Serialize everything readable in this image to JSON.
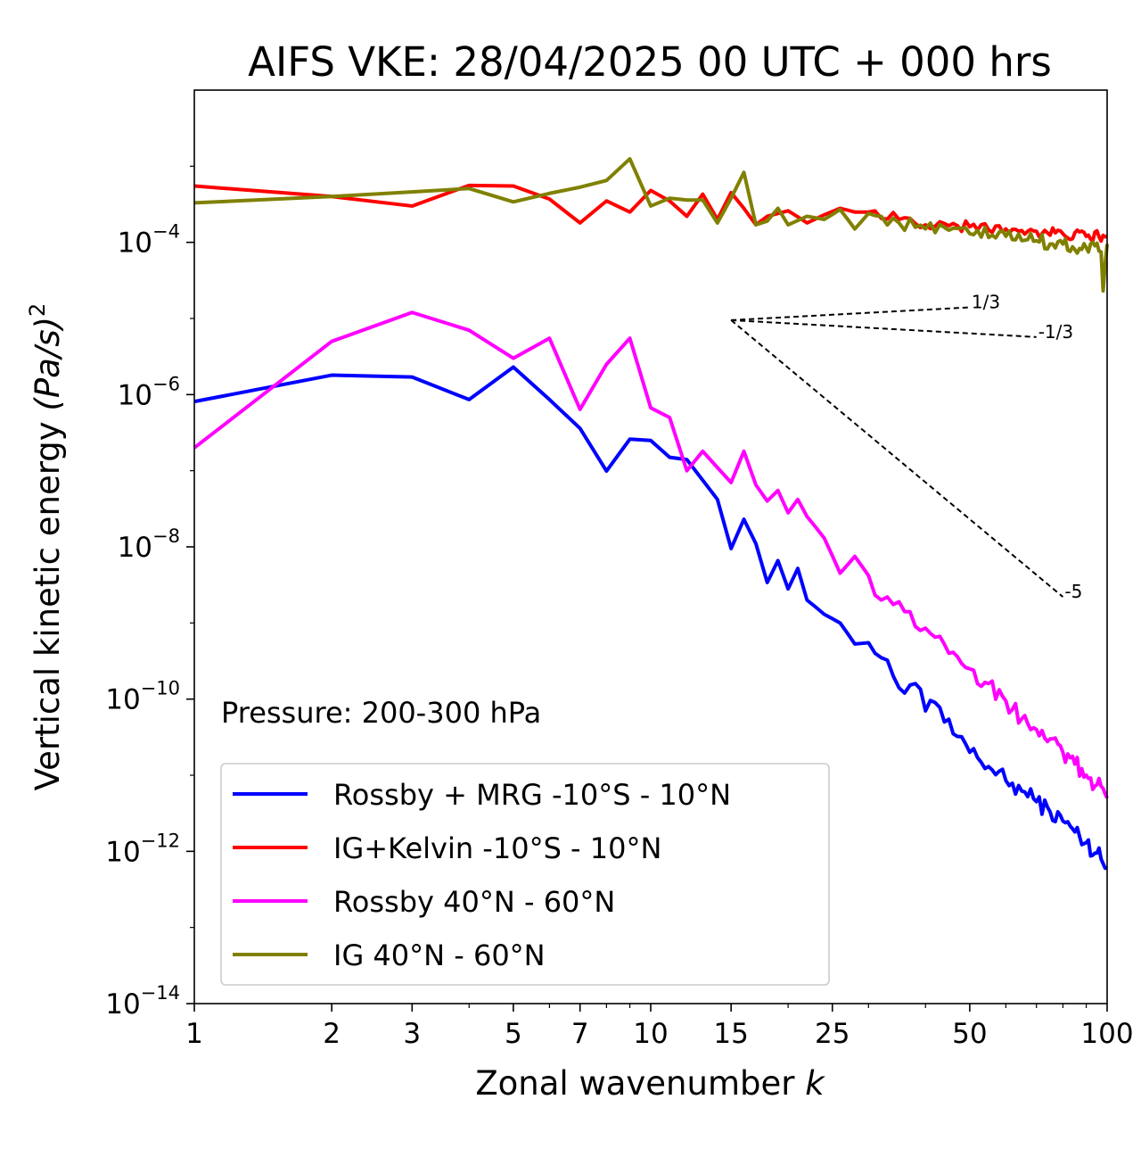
{
  "chart_data": {
    "type": "line",
    "title": "AIFS VKE: 28/04/2025 00 UTC + 000 hrs",
    "xlabel": "Zonal wavenumber",
    "xlabel_var": "k",
    "ylabel": "Vertical kinetic energy",
    "ylabel_var": "(Pa/s)",
    "ylabel_exp": "2",
    "xscale": "log",
    "yscale": "log",
    "xlim": [
      1,
      100
    ],
    "ylim": [
      1e-14,
      0.01
    ],
    "xticks": [
      {
        "value": 1,
        "label": "1"
      },
      {
        "value": 2,
        "label": "2"
      },
      {
        "value": 3,
        "label": "3"
      },
      {
        "value": 5,
        "label": "5"
      },
      {
        "value": 7,
        "label": "7"
      },
      {
        "value": 10,
        "label": "10"
      },
      {
        "value": 15,
        "label": "15"
      },
      {
        "value": 25,
        "label": "25"
      },
      {
        "value": 50,
        "label": "50"
      },
      {
        "value": 100,
        "label": "100"
      }
    ],
    "yticks": [
      {
        "value": 0.0001,
        "base": "10",
        "exp": "−4"
      },
      {
        "value": 1e-06,
        "base": "10",
        "exp": "−6"
      },
      {
        "value": 1e-08,
        "base": "10",
        "exp": "−8"
      },
      {
        "value": 1e-10,
        "base": "10",
        "exp": "−10"
      },
      {
        "value": 1e-12,
        "base": "10",
        "exp": "−12"
      },
      {
        "value": 1e-14,
        "base": "10",
        "exp": "−14"
      }
    ],
    "annotation": "Pressure: 200-300 hPa",
    "legend_position": "lower-left",
    "series": [
      {
        "name": "Rossby + MRG -10°S - 10°N",
        "color": "#0000ff",
        "anchors": [
          [
            1,
            8.1e-07
          ],
          [
            2,
            1.8e-06
          ],
          [
            3,
            1.7e-06
          ],
          [
            4,
            8.6e-07
          ],
          [
            5,
            2.3e-06
          ],
          [
            6,
            8.6e-07
          ],
          [
            7,
            3.6e-07
          ],
          [
            8,
            9.9e-08
          ],
          [
            9,
            2.6e-07
          ],
          [
            10,
            2.5e-07
          ],
          [
            11,
            1.5e-07
          ],
          [
            12,
            1.4e-07
          ],
          [
            13,
            7.5e-08
          ],
          [
            14,
            4.2e-08
          ],
          [
            15,
            9.5e-09
          ],
          [
            16,
            2.3e-08
          ],
          [
            17,
            1.1e-08
          ],
          [
            18,
            3.4e-09
          ],
          [
            19,
            6.6e-09
          ],
          [
            20,
            2.8e-09
          ],
          [
            21,
            5.2e-09
          ],
          [
            22,
            2e-09
          ],
          [
            24,
            1.3e-09
          ],
          [
            26,
            1e-09
          ],
          [
            28,
            5.3e-10
          ],
          [
            30,
            5.5e-10
          ],
          [
            32,
            3.5e-10
          ],
          [
            34,
            2e-10
          ],
          [
            36,
            1.2e-10
          ],
          [
            38,
            1.6e-10
          ],
          [
            40,
            7e-11
          ],
          [
            42,
            9e-11
          ],
          [
            44,
            5e-11
          ],
          [
            46,
            3.5e-11
          ],
          [
            48,
            3.2e-11
          ],
          [
            50,
            2e-11
          ],
          [
            55,
            1.3e-11
          ],
          [
            60,
            8.5e-12
          ],
          [
            65,
            6.2e-12
          ],
          [
            70,
            4.5e-12
          ],
          [
            75,
            3.3e-12
          ],
          [
            80,
            2.5e-12
          ],
          [
            85,
            1.8e-12
          ],
          [
            90,
            1.3e-12
          ],
          [
            95,
            9.5e-13
          ],
          [
            100,
            6e-13
          ]
        ],
        "noise": 0.12
      },
      {
        "name": "IG+Kelvin -10°S - 10°N",
        "color": "#ff0000",
        "anchors": [
          [
            1,
            0.00055
          ],
          [
            2,
            0.0004
          ],
          [
            3,
            0.0003
          ],
          [
            4,
            0.00056
          ],
          [
            5,
            0.00055
          ],
          [
            6,
            0.00037
          ],
          [
            7,
            0.00018
          ],
          [
            8,
            0.00035
          ],
          [
            9,
            0.00025
          ],
          [
            10,
            0.00048
          ],
          [
            11,
            0.00035
          ],
          [
            12,
            0.00022
          ],
          [
            13,
            0.00043
          ],
          [
            14,
            0.0002
          ],
          [
            15,
            0.00045
          ],
          [
            16,
            0.00028
          ],
          [
            17,
            0.00017
          ],
          [
            18,
            0.00022
          ],
          [
            20,
            0.00026
          ],
          [
            22,
            0.00018
          ],
          [
            24,
            0.00023
          ],
          [
            26,
            0.00028
          ],
          [
            28,
            0.00025
          ],
          [
            30,
            0.00025
          ],
          [
            35,
            0.0002
          ],
          [
            40,
            0.00017
          ],
          [
            50,
            0.00016
          ],
          [
            60,
            0.00015
          ],
          [
            70,
            0.00014
          ],
          [
            80,
            0.00013
          ],
          [
            90,
            0.00012
          ],
          [
            100,
            0.00012
          ]
        ],
        "noise": 0.08
      },
      {
        "name": "Rossby 40°N - 60°N",
        "color": "#ff00ff",
        "anchors": [
          [
            1,
            2e-07
          ],
          [
            2,
            5e-06
          ],
          [
            3,
            1.2e-05
          ],
          [
            4,
            7e-06
          ],
          [
            5,
            3e-06
          ],
          [
            6,
            5.5e-06
          ],
          [
            7,
            6.4e-07
          ],
          [
            8,
            2.5e-06
          ],
          [
            9,
            5.5e-06
          ],
          [
            10,
            6.7e-07
          ],
          [
            11,
            5e-07
          ],
          [
            12,
            1e-07
          ],
          [
            13,
            1.8e-07
          ],
          [
            14,
            1.1e-07
          ],
          [
            15,
            7e-08
          ],
          [
            16,
            1.8e-07
          ],
          [
            17,
            6.5e-08
          ],
          [
            18,
            4e-08
          ],
          [
            19,
            5.5e-08
          ],
          [
            20,
            2.8e-08
          ],
          [
            21,
            4.2e-08
          ],
          [
            22,
            2.5e-08
          ],
          [
            24,
            1.3e-08
          ],
          [
            26,
            4.5e-09
          ],
          [
            28,
            7.5e-09
          ],
          [
            30,
            4.2e-09
          ],
          [
            32,
            2e-09
          ],
          [
            35,
            1.9e-09
          ],
          [
            38,
            9e-10
          ],
          [
            42,
            6.5e-10
          ],
          [
            45,
            4e-10
          ],
          [
            50,
            2.5e-10
          ],
          [
            55,
            1.6e-10
          ],
          [
            60,
            9.5e-11
          ],
          [
            65,
            5.5e-11
          ],
          [
            70,
            4e-11
          ],
          [
            75,
            3e-11
          ],
          [
            80,
            2e-11
          ],
          [
            85,
            1.4e-11
          ],
          [
            90,
            1e-11
          ],
          [
            95,
            7.5e-12
          ],
          [
            100,
            5e-12
          ]
        ],
        "noise": 0.12
      },
      {
        "name": "IG 40°N - 60°N",
        "color": "#808000",
        "anchors": [
          [
            1,
            0.00033
          ],
          [
            2,
            0.0004
          ],
          [
            3,
            0.00046
          ],
          [
            4,
            0.00051
          ],
          [
            5,
            0.00034
          ],
          [
            6,
            0.00044
          ],
          [
            7,
            0.00053
          ],
          [
            8,
            0.00065
          ],
          [
            9,
            0.00125
          ],
          [
            10,
            0.0003
          ],
          [
            11,
            0.00038
          ],
          [
            12,
            0.00036
          ],
          [
            13,
            0.00036
          ],
          [
            14,
            0.00018
          ],
          [
            15,
            0.00038
          ],
          [
            16,
            0.00083
          ],
          [
            17,
            0.00017
          ],
          [
            18,
            0.00019
          ],
          [
            19,
            0.00028
          ],
          [
            20,
            0.00017
          ],
          [
            22,
            0.00022
          ],
          [
            24,
            0.0002
          ],
          [
            26,
            0.00027
          ],
          [
            28,
            0.00015
          ],
          [
            30,
            0.00024
          ],
          [
            35,
            0.00018
          ],
          [
            40,
            0.00015
          ],
          [
            50,
            0.00013
          ],
          [
            60,
            0.00012
          ],
          [
            70,
            0.000105
          ],
          [
            80,
            9.5e-05
          ],
          [
            90,
            8.5e-05
          ],
          [
            97,
            7.5e-05
          ],
          [
            98,
            2.3e-05
          ],
          [
            100,
            9.5e-05
          ]
        ],
        "noise": 0.1
      }
    ],
    "reference_slopes": [
      {
        "label": "1/3",
        "slope": 0.3333,
        "from": [
          15,
          9.5e-06
        ],
        "to": [
          50,
          1.4e-05
        ]
      },
      {
        "label": "-1/3",
        "slope": -0.3333,
        "from": [
          15,
          9.5e-06
        ],
        "to": [
          70,
          5.7e-06
        ]
      },
      {
        "label": "-5",
        "slope": -5,
        "from": [
          15,
          9.5e-06
        ],
        "to": [
          80,
          2.2e-09
        ]
      }
    ]
  }
}
